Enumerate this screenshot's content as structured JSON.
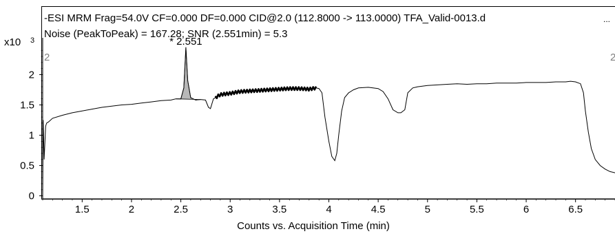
{
  "chart_data": {
    "type": "line",
    "title_line1": "-ESI MRM Frag=54.0V CF=0.000 DF=0.000 CID@2.0 (112.8000 -> 113.0000) TFA_Valid-0013.d",
    "title_line2": "Noise (PeakToPeak) = 167.28; SNR (2.551min) = 5.3",
    "ellipsis": "...",
    "y_multiplier_label": "x10",
    "y_multiplier_exponent": "3",
    "xlabel": "Counts vs. Acquisition Time (min)",
    "ylabel": "",
    "xlim": [
      1.1,
      6.9
    ],
    "ylim": [
      -0.05,
      2.55
    ],
    "x_ticks": [
      1.5,
      2,
      2.5,
      3,
      3.5,
      4,
      4.5,
      5,
      5.5,
      6,
      6.5
    ],
    "x_tick_labels": [
      "1.5",
      "2",
      "2.5",
      "3",
      "3.5",
      "4",
      "4.5",
      "5",
      "5.5",
      "6",
      "6.5"
    ],
    "y_ticks": [
      0,
      0.5,
      1,
      1.5,
      2
    ],
    "y_tick_labels": [
      "0",
      "0.5",
      "1",
      "1.5",
      "2"
    ],
    "grid": false,
    "peak_label": "* 2.551",
    "marker_left": "2",
    "marker_right": "2",
    "series": [
      {
        "x": [
          1.1,
          1.105,
          1.115,
          1.13,
          1.14,
          1.16,
          1.2,
          1.3,
          1.4,
          1.5,
          1.6,
          1.7,
          1.8,
          1.9,
          2.0,
          2.1,
          2.2,
          2.3,
          2.4,
          2.45,
          2.5,
          2.53,
          2.551,
          2.57,
          2.6,
          2.65,
          2.7,
          2.75,
          2.78,
          2.8,
          2.83,
          2.87,
          2.9,
          3.0,
          3.1,
          3.2,
          3.3,
          3.4,
          3.5,
          3.6,
          3.7,
          3.8,
          3.87,
          3.9,
          3.93,
          3.96,
          4.0,
          4.03,
          4.06,
          4.08,
          4.1,
          4.13,
          4.16,
          4.2,
          4.25,
          4.3,
          4.4,
          4.5,
          4.55,
          4.6,
          4.65,
          4.7,
          4.73,
          4.77,
          4.8,
          4.85,
          4.9,
          5.0,
          5.1,
          5.2,
          5.3,
          5.4,
          5.5,
          5.6,
          5.7,
          5.8,
          5.9,
          6.0,
          6.1,
          6.2,
          6.3,
          6.4,
          6.45,
          6.5,
          6.55,
          6.58,
          6.6,
          6.63,
          6.66,
          6.7,
          6.75,
          6.8,
          6.85,
          6.9
        ],
        "y": [
          0.0,
          1.25,
          0.6,
          1.15,
          1.2,
          1.22,
          1.28,
          1.33,
          1.37,
          1.4,
          1.43,
          1.46,
          1.48,
          1.5,
          1.51,
          1.53,
          1.55,
          1.57,
          1.58,
          1.6,
          1.6,
          1.78,
          2.45,
          1.9,
          1.62,
          1.58,
          1.59,
          1.58,
          1.46,
          1.44,
          1.6,
          1.64,
          1.67,
          1.69,
          1.72,
          1.73,
          1.74,
          1.75,
          1.76,
          1.77,
          1.77,
          1.76,
          1.78,
          1.77,
          1.7,
          1.3,
          0.9,
          0.65,
          0.58,
          0.7,
          1.0,
          1.4,
          1.62,
          1.7,
          1.75,
          1.78,
          1.79,
          1.77,
          1.72,
          1.6,
          1.42,
          1.37,
          1.37,
          1.42,
          1.7,
          1.78,
          1.8,
          1.82,
          1.83,
          1.84,
          1.85,
          1.84,
          1.85,
          1.85,
          1.86,
          1.86,
          1.86,
          1.87,
          1.87,
          1.87,
          1.88,
          1.88,
          1.89,
          1.88,
          1.85,
          1.7,
          1.4,
          1.05,
          0.78,
          0.6,
          0.5,
          0.44,
          0.4,
          0.38
        ]
      }
    ],
    "highlight_range": [
      2.85,
      3.87
    ],
    "peak_fill_range": [
      2.45,
      2.7
    ],
    "colors": {
      "line": "#000000",
      "peak_fill": "#b8b8b8",
      "frame": "#000000",
      "background": "#ffffff"
    }
  }
}
